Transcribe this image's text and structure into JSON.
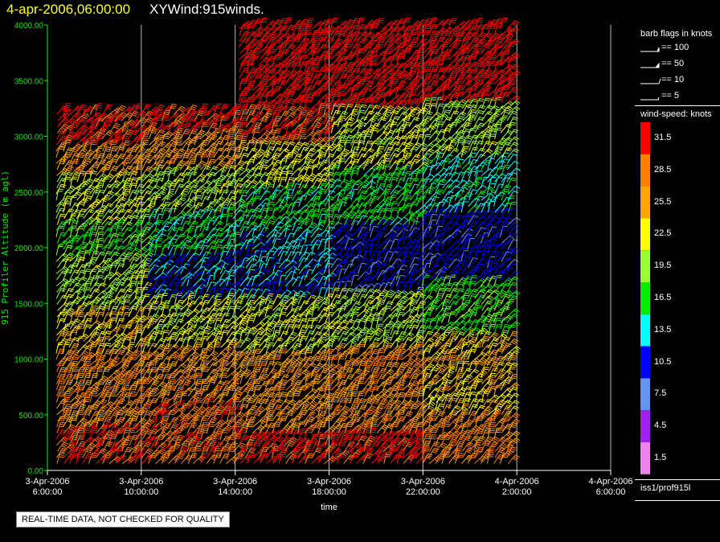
{
  "header": {
    "date": "4-apr-2006,06:00:00",
    "product": "XYWind:915winds."
  },
  "footer": {
    "quality_note": "REAL-TIME DATA, NOT CHECKED FOR QUALITY",
    "station": "iss1/prof915l"
  },
  "legend": {
    "flags_title": "barb flags in knots",
    "flags": [
      {
        "label": "== 100",
        "knots": 100
      },
      {
        "label": "== 50",
        "knots": 50
      },
      {
        "label": "== 10",
        "knots": 10
      },
      {
        "label": "== 5",
        "knots": 5
      }
    ],
    "speed_title": "wind-speed: knots",
    "speed_scale": [
      {
        "label": "31.5",
        "color": "#ff0000"
      },
      {
        "label": "28.5",
        "color": "#ff8000"
      },
      {
        "label": "25.5",
        "color": "#ffa500"
      },
      {
        "label": "22.5",
        "color": "#ffff00"
      },
      {
        "label": "19.5",
        "color": "#99ff33"
      },
      {
        "label": "16.5",
        "color": "#00ee00"
      },
      {
        "label": "13.5",
        "color": "#00ffff"
      },
      {
        "label": "10.5",
        "color": "#0000ff"
      },
      {
        "label": "7.5",
        "color": "#6495ed"
      },
      {
        "label": "4.5",
        "color": "#a020f0"
      },
      {
        "label": "1.5",
        "color": "#ee82ee"
      }
    ]
  },
  "chart_data": {
    "type": "scatter",
    "xlabel": "time",
    "ylabel": "915 Profiler Altitude (m agl)",
    "ylim": [
      0,
      4000
    ],
    "xlim_hours": [
      0,
      24
    ],
    "x_ticks": [
      {
        "line1": "3-Apr-2006",
        "line2": "6:00:00"
      },
      {
        "line1": "3-Apr-2006",
        "line2": "10:00:00"
      },
      {
        "line1": "3-Apr-2006",
        "line2": "14:00:00"
      },
      {
        "line1": "3-Apr-2006",
        "line2": "18:00:00"
      },
      {
        "line1": "3-Apr-2006",
        "line2": "22:00:00"
      },
      {
        "line1": "4-Apr-2006",
        "line2": "2:00:00"
      },
      {
        "line1": "4-Apr-2006",
        "line2": "6:00:00"
      }
    ],
    "y_ticks": [
      "0.00",
      "500.00",
      "1000.00",
      "1500.00",
      "2000.00",
      "2500.00",
      "3000.00",
      "3500.00",
      "4000.00"
    ],
    "grid": true,
    "data_hours": [
      0.4,
      19.6
    ],
    "series": [
      {
        "bands": [
          {
            "h0": 0,
            "h1": 350,
            "kt": 30
          },
          {
            "h0": 350,
            "h1": 1000,
            "kt": 27
          },
          {
            "h0": 1000,
            "h1": 1400,
            "kt": 24
          },
          {
            "h0": 1400,
            "h1": 1900,
            "kt": 20
          },
          {
            "h0": 1900,
            "h1": 2200,
            "kt": 17
          },
          {
            "h0": 2200,
            "h1": 2600,
            "kt": 21
          },
          {
            "h0": 2600,
            "h1": 2900,
            "kt": 26
          },
          {
            "h0": 2900,
            "h1": 3200,
            "kt": 31
          }
        ]
      },
      {
        "bands": [
          {
            "h0": 0,
            "h1": 600,
            "kt": 29
          },
          {
            "h0": 600,
            "h1": 1100,
            "kt": 26
          },
          {
            "h0": 1100,
            "h1": 1500,
            "kt": 22
          },
          {
            "h0": 1500,
            "h1": 1900,
            "kt": 12
          },
          {
            "h0": 1900,
            "h1": 2300,
            "kt": 15
          },
          {
            "h0": 2300,
            "h1": 2700,
            "kt": 20
          },
          {
            "h0": 2700,
            "h1": 3000,
            "kt": 26
          },
          {
            "h0": 3000,
            "h1": 3200,
            "kt": 31
          }
        ]
      },
      {
        "bands": [
          {
            "h0": 0,
            "h1": 300,
            "kt": 31
          },
          {
            "h0": 300,
            "h1": 1000,
            "kt": 26
          },
          {
            "h0": 1000,
            "h1": 1500,
            "kt": 21
          },
          {
            "h0": 1500,
            "h1": 2100,
            "kt": 13
          },
          {
            "h0": 2100,
            "h1": 2500,
            "kt": 16
          },
          {
            "h0": 2500,
            "h1": 2900,
            "kt": 22
          },
          {
            "h0": 2900,
            "h1": 3300,
            "kt": 30
          },
          {
            "h0": 3300,
            "h1": 4000,
            "kt": 32
          }
        ]
      },
      {
        "bands": [
          {
            "h0": 0,
            "h1": 300,
            "kt": 31
          },
          {
            "h0": 300,
            "h1": 1100,
            "kt": 27
          },
          {
            "h0": 1100,
            "h1": 1600,
            "kt": 20
          },
          {
            "h0": 1600,
            "h1": 2200,
            "kt": 10
          },
          {
            "h0": 2200,
            "h1": 2700,
            "kt": 16
          },
          {
            "h0": 2700,
            "h1": 3200,
            "kt": 22
          },
          {
            "h0": 3200,
            "h1": 4000,
            "kt": 32
          }
        ]
      },
      {
        "bands": [
          {
            "h0": 0,
            "h1": 500,
            "kt": 28
          },
          {
            "h0": 500,
            "h1": 1200,
            "kt": 24
          },
          {
            "h0": 1200,
            "h1": 1700,
            "kt": 18
          },
          {
            "h0": 1700,
            "h1": 2300,
            "kt": 10
          },
          {
            "h0": 2300,
            "h1": 2800,
            "kt": 14
          },
          {
            "h0": 2800,
            "h1": 3300,
            "kt": 20
          },
          {
            "h0": 3300,
            "h1": 4000,
            "kt": 32
          }
        ]
      }
    ]
  }
}
